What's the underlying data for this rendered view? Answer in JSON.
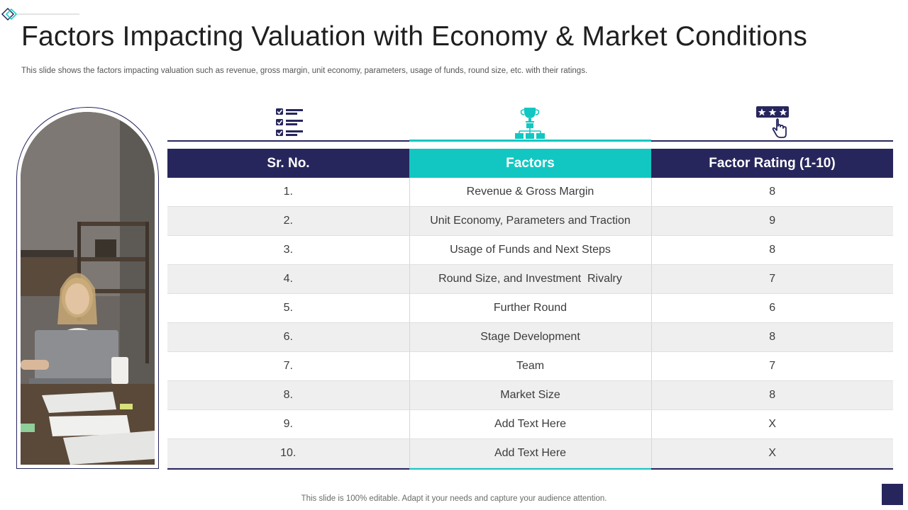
{
  "title": "Factors Impacting Valuation with Economy & Market Conditions",
  "subtitle": "This slide shows the factors impacting valuation such as revenue, gross margin, unit economy, parameters, usage of funds, round size, etc. with their ratings.",
  "icons": [
    "checklist-icon",
    "trophy-hierarchy-icon",
    "star-rating-click-icon"
  ],
  "colors": {
    "navy": "#27265c",
    "teal": "#12c7c2",
    "row_alt": "#efefef"
  },
  "table": {
    "headers": [
      "Sr. No.",
      "Factors",
      "Factor Rating (1-10)"
    ],
    "rows": [
      [
        "1.",
        "Revenue & Gross Margin",
        "8"
      ],
      [
        "2.",
        "Unit Economy, Parameters and Traction",
        "9"
      ],
      [
        "3.",
        "Usage of Funds and Next Steps",
        "8"
      ],
      [
        "4.",
        "Round Size, and Investment  Rivalry",
        "7"
      ],
      [
        "5.",
        "Further Round",
        "6"
      ],
      [
        "6.",
        "Stage Development",
        "8"
      ],
      [
        "7.",
        "Team",
        "7"
      ],
      [
        "8.",
        "Market Size",
        "8"
      ],
      [
        "9.",
        "Add Text Here",
        "X"
      ],
      [
        "10.",
        "Add Text Here",
        "X"
      ]
    ]
  },
  "footer": "This slide is 100% editable. Adapt it your needs and capture your audience attention."
}
